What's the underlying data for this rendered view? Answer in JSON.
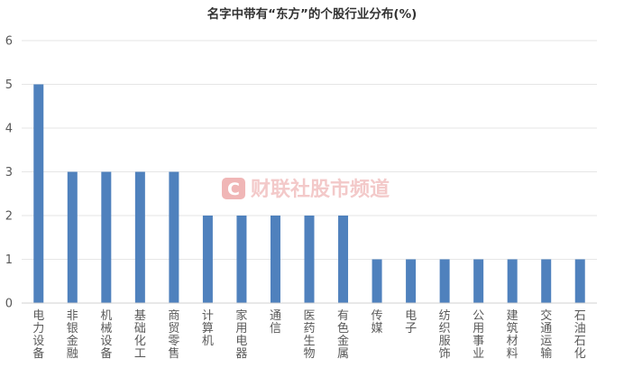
{
  "chart_data": {
    "type": "bar",
    "title": "名字中带有“东方”的个股行业分布(%)",
    "categories": [
      "电力设备",
      "非银金融",
      "机械设备",
      "基础化工",
      "商贸零售",
      "计算机",
      "家用电器",
      "通信",
      "医药生物",
      "有色金属",
      "传媒",
      "电子",
      "纺织服饰",
      "公用事业",
      "建筑材料",
      "交通运输",
      "石油石化"
    ],
    "values": [
      5,
      3,
      3,
      3,
      3,
      2,
      2,
      2,
      2,
      2,
      1,
      1,
      1,
      1,
      1,
      1,
      1
    ],
    "ylim": [
      0,
      6
    ],
    "yticks": [
      0,
      1,
      2,
      3,
      4,
      5,
      6
    ],
    "grid": true,
    "legend": "none",
    "xlabel": "",
    "ylabel": ""
  },
  "colors": {
    "bar": "#4f81bd",
    "grid": "#e6e6e6",
    "axis": "#d0d0d0",
    "watermark": "#f3c9c9",
    "watermark_icon": "#f0b6b6"
  },
  "watermark": {
    "text": "财联社股市频道",
    "icon": "C"
  }
}
